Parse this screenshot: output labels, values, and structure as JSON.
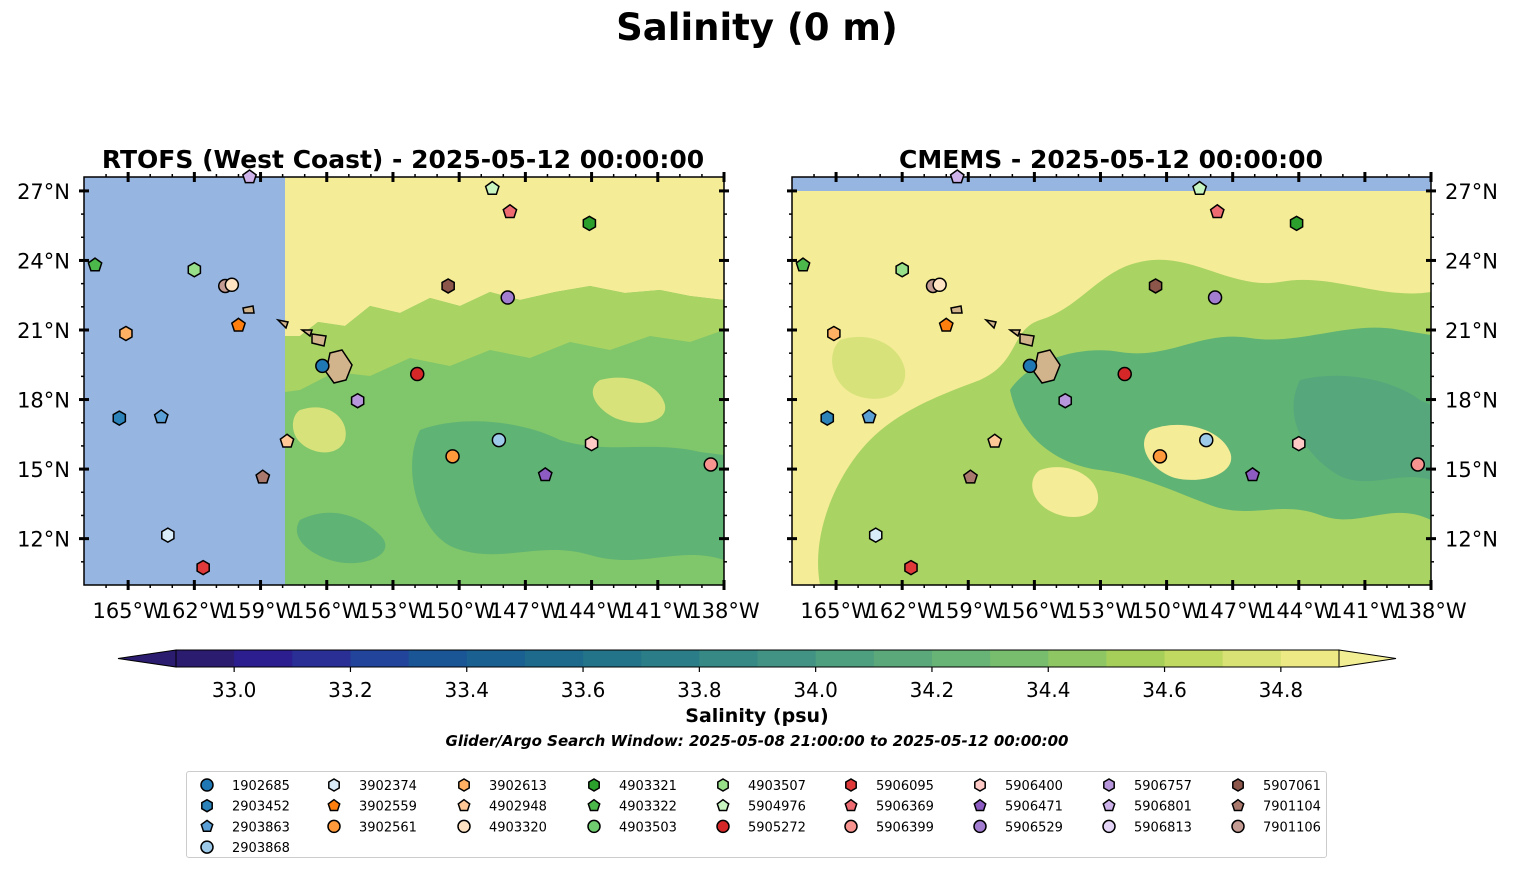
{
  "title": "Salinity (0 m)",
  "chart_data": [
    {
      "type": "contour-map",
      "title": "RTOFS (West Coast) - 2025-05-12 00:00:00",
      "ylabels": [
        "27°N",
        "24°N",
        "21°N",
        "18°N",
        "15°N",
        "12°N"
      ],
      "xlabels": [
        "165°W",
        "162°W",
        "159°W",
        "156°W",
        "153°W",
        "150°W",
        "147°W",
        "144°W",
        "141°W",
        "138°W"
      ],
      "xlim_lon": [
        -167,
        -138
      ],
      "ylim_lat": [
        10,
        27.6
      ],
      "no_data_region": "west of 157.9°W",
      "field_description": "salinity contours"
    },
    {
      "type": "contour-map",
      "title": "CMEMS - 2025-05-12 00:00:00",
      "ylabels": [
        "27°N",
        "24°N",
        "21°N",
        "18°N",
        "15°N",
        "12°N"
      ],
      "xlabels": [
        "165°W",
        "162°W",
        "159°W",
        "156°W",
        "153°W",
        "150°W",
        "147°W",
        "144°W",
        "141°W",
        "138°W"
      ],
      "xlim_lon": [
        -167,
        -138
      ],
      "ylim_lat": [
        10,
        27.6
      ]
    }
  ],
  "colorbar": {
    "label": "Salinity (psu)",
    "ticks": [
      "33.0",
      "33.2",
      "33.4",
      "33.6",
      "33.8",
      "34.0",
      "34.2",
      "34.4",
      "34.6",
      "34.8"
    ],
    "range": [
      32.9,
      34.9
    ],
    "colors": [
      "#2b1c6f",
      "#2c1e8e",
      "#2a2f96",
      "#22449a",
      "#1a5595",
      "#1a6090",
      "#1d6a8c",
      "#237489",
      "#2b7e87",
      "#368985",
      "#429383",
      "#4e9e80",
      "#5ba97b",
      "#68b376",
      "#78bd6e",
      "#8ec664",
      "#a6cf5a",
      "#c0d961",
      "#d9e274",
      "#ede985"
    ],
    "extend_low": "#2b1c6f",
    "extend_high": "#f2ee93"
  },
  "subtitle": "Glider/Argo Search Window: 2025-05-08 21:00:00 to 2025-05-12 00:00:00",
  "legend": {
    "columns": [
      [
        {
          "id": "1902685",
          "marker": "circle",
          "color": "#1f77b4"
        },
        {
          "id": "2903452",
          "marker": "hexagon",
          "color": "#2b83ba"
        },
        {
          "id": "2903863",
          "marker": "pentagon",
          "color": "#5aa0d6"
        },
        {
          "id": "2903868",
          "marker": "circle",
          "color": "#9ecae9"
        }
      ],
      [
        {
          "id": "3902374",
          "marker": "hexagon",
          "color": "#d8ecfa"
        },
        {
          "id": "3902559",
          "marker": "pentagon",
          "color": "#ff7f0e"
        },
        {
          "id": "3902561",
          "marker": "circle",
          "color": "#ff9a3c"
        }
      ],
      [
        {
          "id": "3902613",
          "marker": "hexagon",
          "color": "#ffb062"
        },
        {
          "id": "4902948",
          "marker": "pentagon",
          "color": "#ffc896"
        },
        {
          "id": "4903320",
          "marker": "circle",
          "color": "#ffe3c2"
        }
      ],
      [
        {
          "id": "4903321",
          "marker": "hexagon",
          "color": "#2ca02c"
        },
        {
          "id": "4903322",
          "marker": "pentagon",
          "color": "#4cb84c"
        },
        {
          "id": "4903503",
          "marker": "circle",
          "color": "#6fcc6f"
        }
      ],
      [
        {
          "id": "4903507",
          "marker": "hexagon",
          "color": "#98df8a"
        },
        {
          "id": "5904976",
          "marker": "pentagon",
          "color": "#c8f5c0"
        },
        {
          "id": "5905272",
          "marker": "circle",
          "color": "#d62728"
        }
      ],
      [
        {
          "id": "5906095",
          "marker": "hexagon",
          "color": "#e0393a"
        },
        {
          "id": "5906369",
          "marker": "pentagon",
          "color": "#ee6b72"
        },
        {
          "id": "5906399",
          "marker": "circle",
          "color": "#f7948f"
        }
      ],
      [
        {
          "id": "5906400",
          "marker": "hexagon",
          "color": "#ffc9c6"
        },
        {
          "id": "5906471",
          "marker": "pentagon",
          "color": "#8c5cc2"
        },
        {
          "id": "5906529",
          "marker": "circle",
          "color": "#a27dd0"
        }
      ],
      [
        {
          "id": "5906757",
          "marker": "hexagon",
          "color": "#b796dc"
        },
        {
          "id": "5906801",
          "marker": "pentagon",
          "color": "#cdb3ea"
        },
        {
          "id": "5906813",
          "marker": "circle",
          "color": "#e4d4f5"
        }
      ],
      [
        {
          "id": "5907061",
          "marker": "hexagon",
          "color": "#8c564b"
        },
        {
          "id": "7901104",
          "marker": "pentagon",
          "color": "#a9796d"
        },
        {
          "id": "7901106",
          "marker": "circle",
          "color": "#c49c94"
        }
      ]
    ]
  },
  "platforms": [
    {
      "id": "5906801",
      "lon": -159.5,
      "lat": 27.6
    },
    {
      "id": "5904976",
      "lon": -148.5,
      "lat": 27.1
    },
    {
      "id": "5906369",
      "lon": -147.7,
      "lat": 26.1
    },
    {
      "id": "4903321",
      "lon": -144.1,
      "lat": 25.6
    },
    {
      "id": "4903322",
      "lon": -166.5,
      "lat": 23.8
    },
    {
      "id": "4903507",
      "lon": -162.0,
      "lat": 23.6
    },
    {
      "id": "7901106",
      "lon": -160.6,
      "lat": 22.9
    },
    {
      "id": "4903320",
      "lon": -160.3,
      "lat": 22.95
    },
    {
      "id": "5907061",
      "lon": -150.5,
      "lat": 22.9
    },
    {
      "id": "5906529",
      "lon": -147.8,
      "lat": 22.4
    },
    {
      "id": "3902559",
      "lon": -160.0,
      "lat": 21.2
    },
    {
      "id": "3902613",
      "lon": -165.1,
      "lat": 20.85
    },
    {
      "id": "1902685",
      "lon": -156.2,
      "lat": 19.45
    },
    {
      "id": "5905272",
      "lon": -151.9,
      "lat": 19.1
    },
    {
      "id": "5906757",
      "lon": -154.6,
      "lat": 17.95
    },
    {
      "id": "2903452",
      "lon": -165.4,
      "lat": 17.2
    },
    {
      "id": "2903863",
      "lon": -163.5,
      "lat": 17.25
    },
    {
      "id": "2903868",
      "lon": -148.2,
      "lat": 16.25
    },
    {
      "id": "4902948",
      "lon": -157.8,
      "lat": 16.2
    },
    {
      "id": "5906400",
      "lon": -144.0,
      "lat": 16.1
    },
    {
      "id": "3902561",
      "lon": -150.3,
      "lat": 15.55
    },
    {
      "id": "5906399",
      "lon": -138.6,
      "lat": 15.2
    },
    {
      "id": "5906471",
      "lon": -146.1,
      "lat": 14.75
    },
    {
      "id": "7901104",
      "lon": -158.9,
      "lat": 14.65
    },
    {
      "id": "3902374",
      "lon": -163.2,
      "lat": 12.15
    },
    {
      "id": "5906095",
      "lon": -161.6,
      "lat": 10.75
    }
  ]
}
